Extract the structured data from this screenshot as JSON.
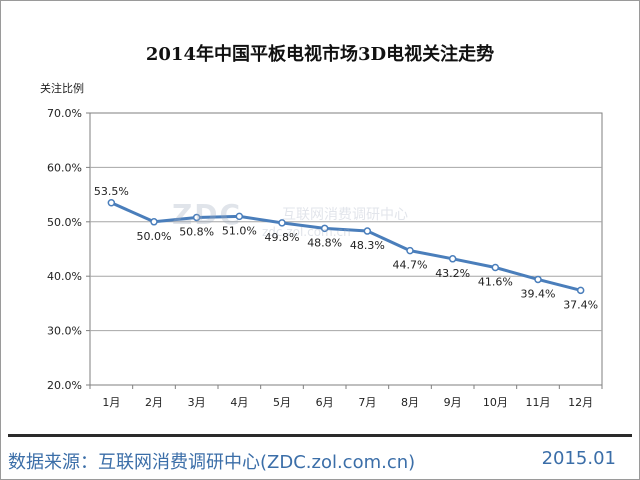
{
  "chart_data": {
    "type": "line",
    "title": "2014年中国平板电视市场3D电视关注走势",
    "ylabel": "关注比例",
    "xlabel": "",
    "categories": [
      "1月",
      "2月",
      "3月",
      "4月",
      "5月",
      "6月",
      "7月",
      "8月",
      "9月",
      "10月",
      "11月",
      "12月"
    ],
    "values": [
      53.5,
      50.0,
      50.8,
      51.0,
      49.8,
      48.8,
      48.3,
      44.7,
      43.2,
      41.6,
      39.4,
      37.4
    ],
    "value_labels": [
      "53.5%",
      "50.0%",
      "50.8%",
      "51.0%",
      "49.8%",
      "48.8%",
      "48.3%",
      "44.7%",
      "43.2%",
      "41.6%",
      "39.4%",
      "37.4%"
    ],
    "ylim": [
      20,
      70
    ],
    "yticks": [
      20,
      30,
      40,
      50,
      60,
      70
    ],
    "ytick_labels": [
      "20.0%",
      "30.0%",
      "40.0%",
      "50.0%",
      "60.0%",
      "70.0%"
    ],
    "grid": true,
    "line_color": "#4a7ebb"
  },
  "watermark": {
    "brand": "ZDC",
    "brand_cn": "互联网消费调研中心",
    "url": "zdc.zol.com.cn"
  },
  "footer": {
    "source": "数据来源：互联网消费调研中心(ZDC.zol.com.cn)",
    "date": "2015.01"
  },
  "colors": {
    "footer_text": "#3b6ea8",
    "gridline": "#a6a6a6"
  }
}
